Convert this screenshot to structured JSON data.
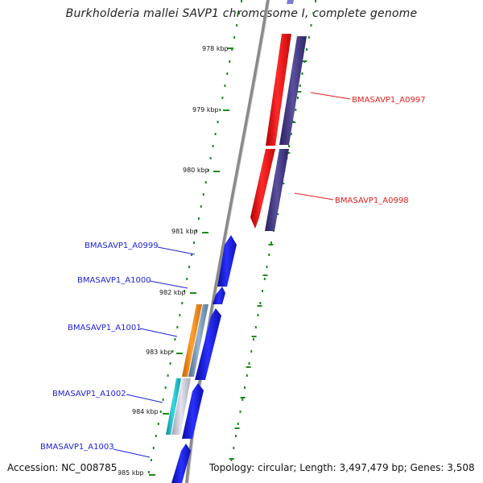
{
  "title": "Burkholderia mallei SAVP1 chromosome I, complete genome",
  "footer": {
    "accession": "Accession: NC_008785",
    "summary": "Topology: circular; Length: 3,497,479 bp; Genes: 3,508"
  },
  "ticks": [
    "978 kbp",
    "979 kbp",
    "980 kbp",
    "981 kbp",
    "982 kbp",
    "983 kbp",
    "984 kbp",
    "985 kbp"
  ],
  "genes": [
    {
      "id": "BMASAVP1_A0997",
      "strand": "forward",
      "color": "#e0201e"
    },
    {
      "id": "BMASAVP1_A0998",
      "strand": "forward",
      "color": "#e0201e"
    },
    {
      "id": "BMASAVP1_A0999",
      "strand": "reverse",
      "color": "#1f23d6"
    },
    {
      "id": "BMASAVP1_A1000",
      "strand": "reverse",
      "color": "#1f23d6"
    },
    {
      "id": "BMASAVP1_A1001",
      "strand": "reverse",
      "color": "#1f23d6"
    },
    {
      "id": "BMASAVP1_A1002",
      "strand": "reverse",
      "color": "#1f23d6"
    },
    {
      "id": "BMASAVP1_A1003",
      "strand": "reverse",
      "color": "#1f23d6"
    }
  ],
  "colors": {
    "backbone": "#8a8a8a",
    "tick": "#1c8a1c",
    "forward_gene": "#e0201e",
    "forward_cds": "#4b3f8c",
    "reverse_gene": "#1f23d6",
    "orange_feature": "#f08a1a",
    "cyan_feature": "#19b6c4"
  }
}
